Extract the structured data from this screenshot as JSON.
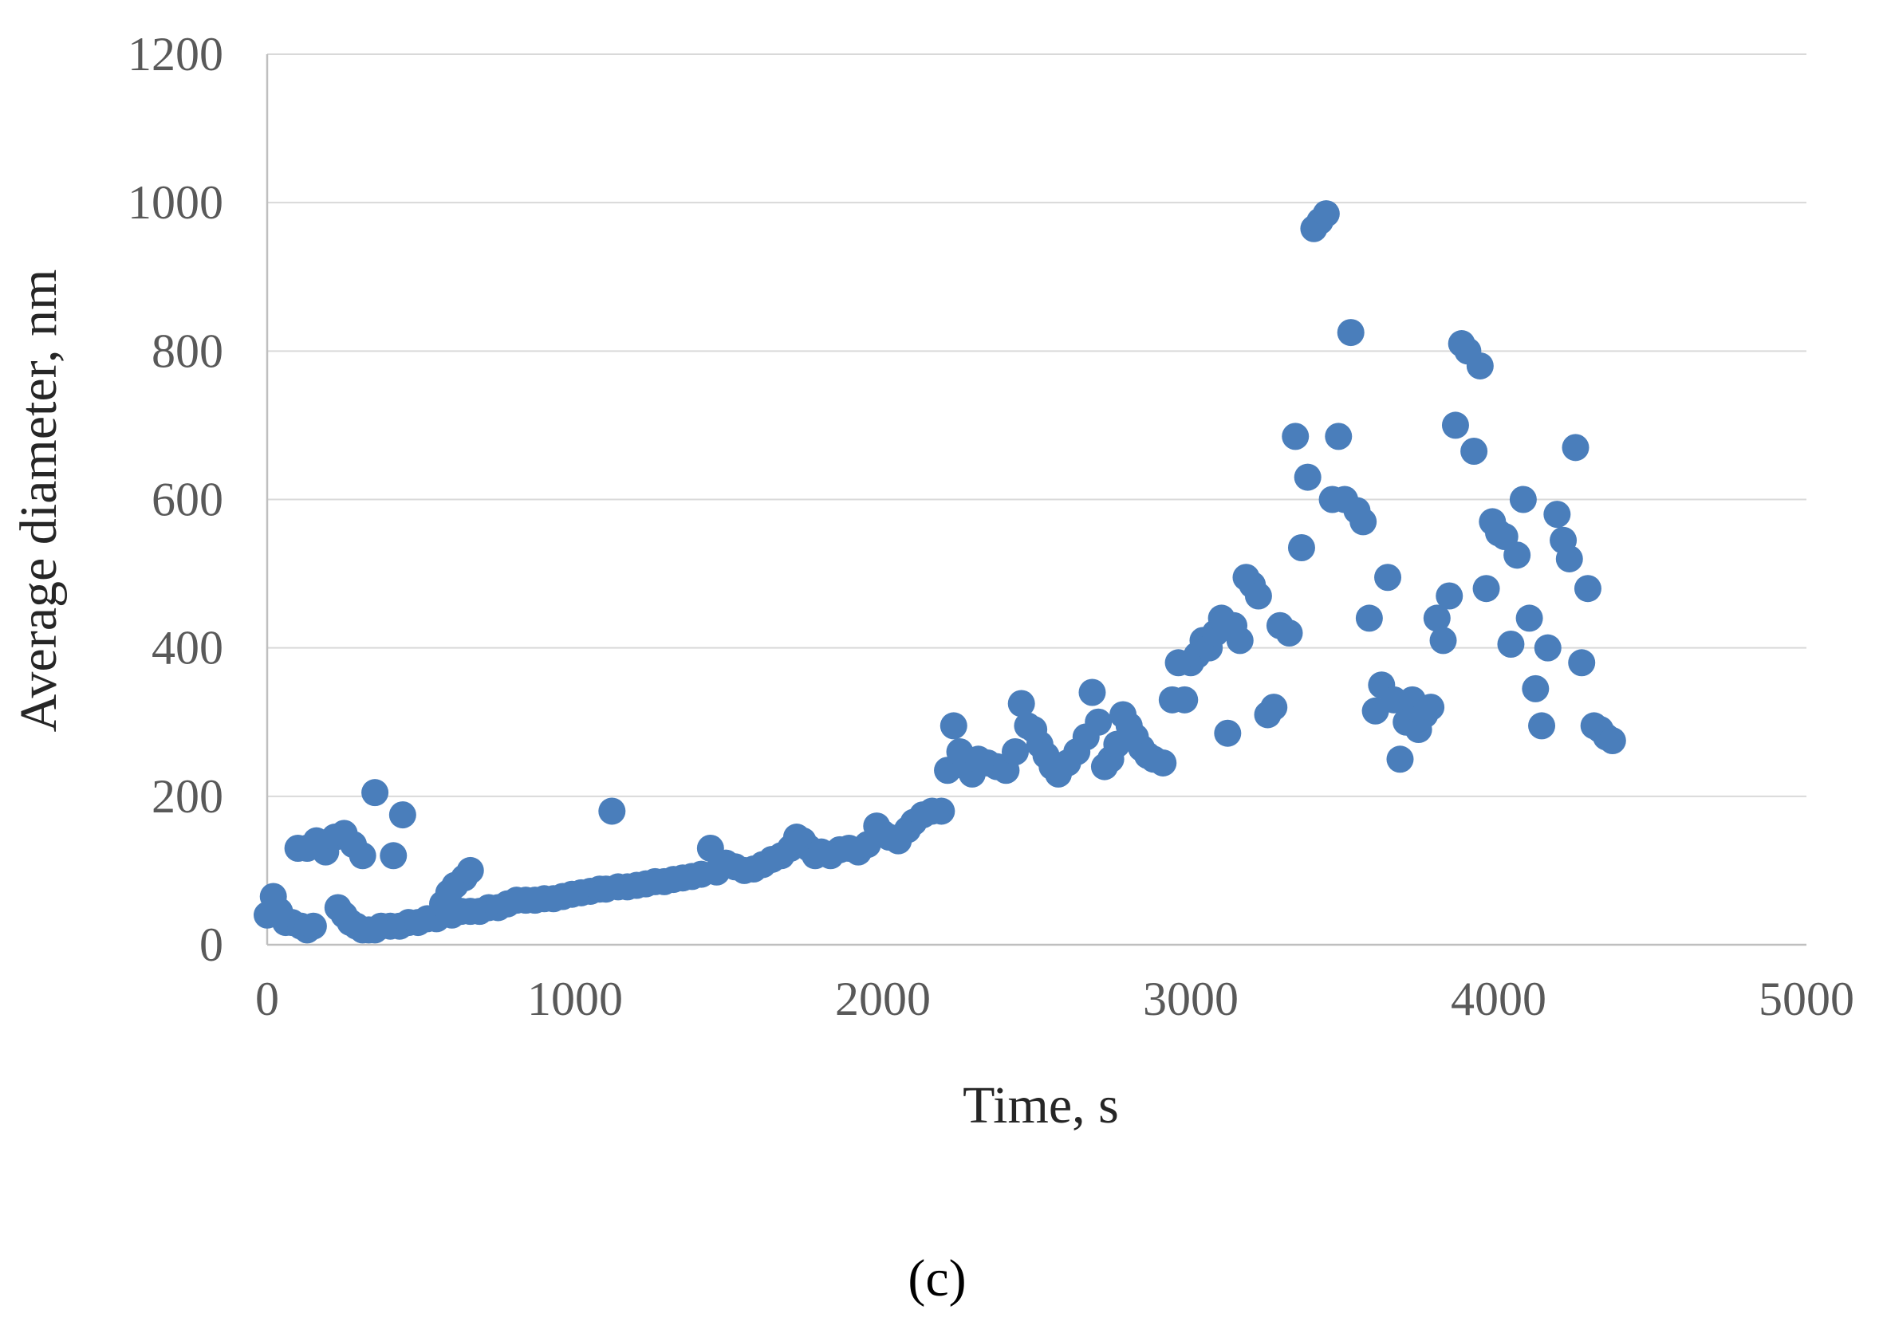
{
  "panel_label": "(c)",
  "colors": {
    "marker": "#4a7ebb",
    "grid": "#d9d9d9",
    "tick_text": "#595959"
  },
  "chart_data": {
    "type": "scatter",
    "xlabel": "Time,  s",
    "ylabel": "Average diameter,  nm",
    "xlim": [
      0,
      5000
    ],
    "ylim": [
      0,
      1200
    ],
    "x_ticks": [
      0,
      1000,
      2000,
      3000,
      4000,
      5000
    ],
    "y_ticks": [
      0,
      200,
      400,
      600,
      800,
      1000,
      1200
    ],
    "x_tick_labels": [
      "0",
      "1000",
      "2000",
      "3000",
      "4000",
      "5000"
    ],
    "y_tick_labels": [
      "0",
      "200",
      "400",
      "600",
      "800",
      "1000",
      "1200"
    ],
    "grid": "horizontal",
    "legend": "none",
    "series": [
      {
        "points": [
          [
            0,
            40
          ],
          [
            20,
            65
          ],
          [
            40,
            45
          ],
          [
            60,
            30
          ],
          [
            80,
            30
          ],
          [
            110,
            25
          ],
          [
            130,
            20
          ],
          [
            150,
            25
          ],
          [
            100,
            130
          ],
          [
            130,
            130
          ],
          [
            160,
            140
          ],
          [
            190,
            125
          ],
          [
            220,
            145
          ],
          [
            250,
            150
          ],
          [
            280,
            135
          ],
          [
            310,
            120
          ],
          [
            230,
            50
          ],
          [
            250,
            40
          ],
          [
            270,
            30
          ],
          [
            290,
            25
          ],
          [
            310,
            20
          ],
          [
            330,
            20
          ],
          [
            350,
            20
          ],
          [
            370,
            25
          ],
          [
            350,
            205
          ],
          [
            410,
            120
          ],
          [
            440,
            175
          ],
          [
            400,
            25
          ],
          [
            430,
            25
          ],
          [
            460,
            30
          ],
          [
            490,
            30
          ],
          [
            520,
            35
          ],
          [
            550,
            35
          ],
          [
            570,
            55
          ],
          [
            590,
            70
          ],
          [
            610,
            80
          ],
          [
            640,
            90
          ],
          [
            660,
            100
          ],
          [
            600,
            40
          ],
          [
            630,
            45
          ],
          [
            660,
            45
          ],
          [
            690,
            45
          ],
          [
            720,
            50
          ],
          [
            750,
            50
          ],
          [
            780,
            55
          ],
          [
            810,
            60
          ],
          [
            840,
            60
          ],
          [
            870,
            60
          ],
          [
            900,
            62
          ],
          [
            930,
            62
          ],
          [
            960,
            65
          ],
          [
            990,
            68
          ],
          [
            1020,
            70
          ],
          [
            1050,
            72
          ],
          [
            1080,
            75
          ],
          [
            1100,
            75
          ],
          [
            1120,
            180
          ],
          [
            1140,
            78
          ],
          [
            1170,
            78
          ],
          [
            1200,
            80
          ],
          [
            1230,
            82
          ],
          [
            1260,
            85
          ],
          [
            1290,
            85
          ],
          [
            1320,
            88
          ],
          [
            1350,
            90
          ],
          [
            1380,
            92
          ],
          [
            1410,
            95
          ],
          [
            1440,
            130
          ],
          [
            1460,
            98
          ],
          [
            1490,
            110
          ],
          [
            1520,
            105
          ],
          [
            1550,
            100
          ],
          [
            1580,
            102
          ],
          [
            1610,
            108
          ],
          [
            1640,
            115
          ],
          [
            1670,
            120
          ],
          [
            1700,
            130
          ],
          [
            1720,
            145
          ],
          [
            1740,
            140
          ],
          [
            1760,
            130
          ],
          [
            1780,
            120
          ],
          [
            1800,
            125
          ],
          [
            1830,
            120
          ],
          [
            1860,
            128
          ],
          [
            1890,
            130
          ],
          [
            1920,
            125
          ],
          [
            1950,
            135
          ],
          [
            1980,
            160
          ],
          [
            2000,
            150
          ],
          [
            2020,
            145
          ],
          [
            2050,
            140
          ],
          [
            2080,
            155
          ],
          [
            2100,
            165
          ],
          [
            2130,
            175
          ],
          [
            2160,
            180
          ],
          [
            2190,
            180
          ],
          [
            2210,
            235
          ],
          [
            2230,
            295
          ],
          [
            2250,
            260
          ],
          [
            2270,
            240
          ],
          [
            2290,
            230
          ],
          [
            2310,
            250
          ],
          [
            2340,
            245
          ],
          [
            2370,
            240
          ],
          [
            2400,
            235
          ],
          [
            2430,
            260
          ],
          [
            2450,
            325
          ],
          [
            2470,
            295
          ],
          [
            2490,
            290
          ],
          [
            2510,
            270
          ],
          [
            2530,
            255
          ],
          [
            2550,
            240
          ],
          [
            2570,
            230
          ],
          [
            2600,
            245
          ],
          [
            2630,
            260
          ],
          [
            2660,
            280
          ],
          [
            2680,
            340
          ],
          [
            2700,
            300
          ],
          [
            2720,
            240
          ],
          [
            2740,
            250
          ],
          [
            2760,
            270
          ],
          [
            2780,
            310
          ],
          [
            2800,
            295
          ],
          [
            2820,
            280
          ],
          [
            2840,
            265
          ],
          [
            2860,
            255
          ],
          [
            2880,
            250
          ],
          [
            2910,
            245
          ],
          [
            2940,
            330
          ],
          [
            2960,
            380
          ],
          [
            2980,
            330
          ],
          [
            3000,
            380
          ],
          [
            3020,
            390
          ],
          [
            3040,
            410
          ],
          [
            3060,
            400
          ],
          [
            3080,
            420
          ],
          [
            3100,
            440
          ],
          [
            3120,
            285
          ],
          [
            3140,
            430
          ],
          [
            3160,
            410
          ],
          [
            3180,
            495
          ],
          [
            3200,
            485
          ],
          [
            3220,
            470
          ],
          [
            3250,
            310
          ],
          [
            3270,
            320
          ],
          [
            3290,
            430
          ],
          [
            3320,
            420
          ],
          [
            3340,
            685
          ],
          [
            3360,
            535
          ],
          [
            3380,
            630
          ],
          [
            3400,
            965
          ],
          [
            3420,
            975
          ],
          [
            3440,
            985
          ],
          [
            3460,
            600
          ],
          [
            3480,
            685
          ],
          [
            3500,
            600
          ],
          [
            3520,
            825
          ],
          [
            3540,
            585
          ],
          [
            3560,
            570
          ],
          [
            3580,
            440
          ],
          [
            3600,
            315
          ],
          [
            3620,
            350
          ],
          [
            3640,
            495
          ],
          [
            3660,
            330
          ],
          [
            3680,
            250
          ],
          [
            3700,
            300
          ],
          [
            3720,
            330
          ],
          [
            3740,
            290
          ],
          [
            3760,
            310
          ],
          [
            3780,
            320
          ],
          [
            3800,
            440
          ],
          [
            3820,
            410
          ],
          [
            3840,
            470
          ],
          [
            3860,
            700
          ],
          [
            3880,
            810
          ],
          [
            3900,
            800
          ],
          [
            3920,
            665
          ],
          [
            3940,
            780
          ],
          [
            3960,
            480
          ],
          [
            3980,
            570
          ],
          [
            4000,
            555
          ],
          [
            4020,
            550
          ],
          [
            4040,
            405
          ],
          [
            4060,
            525
          ],
          [
            4080,
            600
          ],
          [
            4100,
            440
          ],
          [
            4120,
            345
          ],
          [
            4140,
            295
          ],
          [
            4160,
            400
          ],
          [
            4190,
            580
          ],
          [
            4210,
            545
          ],
          [
            4230,
            520
          ],
          [
            4250,
            670
          ],
          [
            4270,
            380
          ],
          [
            4290,
            480
          ],
          [
            4310,
            295
          ],
          [
            4330,
            290
          ],
          [
            4350,
            280
          ],
          [
            4370,
            275
          ]
        ]
      }
    ]
  }
}
